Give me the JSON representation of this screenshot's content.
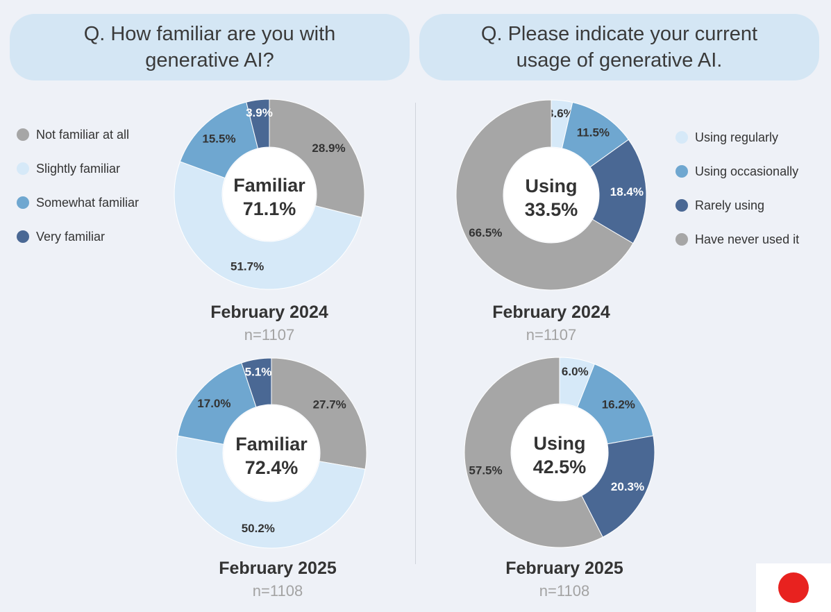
{
  "left_panel": {
    "question": "Q. How familiar are you with\ngenerative AI?",
    "legend": [
      {
        "label": "Not familiar at all",
        "color": "#a6a6a6"
      },
      {
        "label": "Slightly familiar",
        "color": "#d6e9f8"
      },
      {
        "label": "Somewhat familiar",
        "color": "#6fa7d0"
      },
      {
        "label": "Very familiar",
        "color": "#4a6894"
      }
    ]
  },
  "right_panel": {
    "question": "Q. Please indicate your current\nusage of generative AI.",
    "legend": [
      {
        "label": "Using regularly",
        "color": "#d6e9f8"
      },
      {
        "label": "Using occasionally",
        "color": "#6fa7d0"
      },
      {
        "label": "Rarely using",
        "color": "#4a6894"
      },
      {
        "label": "Have never used it",
        "color": "#a6a6a6"
      }
    ]
  },
  "chart_data": [
    {
      "type": "pie",
      "question": "Q. How familiar are you with generative AI?",
      "period": "February 2024",
      "n": "n=1107",
      "center_label": "Familiar",
      "center_value": "71.1%",
      "slices": [
        {
          "name": "Not familiar at all",
          "value": 28.9,
          "label": "28.9%",
          "color": "#a6a6a6"
        },
        {
          "name": "Slightly familiar",
          "value": 51.7,
          "label": "51.7%",
          "color": "#d6e9f8"
        },
        {
          "name": "Somewhat familiar",
          "value": 15.5,
          "label": "15.5%",
          "color": "#6fa7d0"
        },
        {
          "name": "Very familiar",
          "value": 3.9,
          "label": "3.9%",
          "color": "#4a6894"
        }
      ]
    },
    {
      "type": "pie",
      "question": "Q. How familiar are you with generative AI?",
      "period": "February 2025",
      "n": "n=1108",
      "center_label": "Familiar",
      "center_value": "72.4%",
      "slices": [
        {
          "name": "Not familiar at all",
          "value": 27.7,
          "label": "27.7%",
          "color": "#a6a6a6"
        },
        {
          "name": "Slightly familiar",
          "value": 50.2,
          "label": "50.2%",
          "color": "#d6e9f8"
        },
        {
          "name": "Somewhat familiar",
          "value": 17.0,
          "label": "17.0%",
          "color": "#6fa7d0"
        },
        {
          "name": "Very familiar",
          "value": 5.1,
          "label": "5.1%",
          "color": "#4a6894"
        }
      ]
    },
    {
      "type": "pie",
      "question": "Q. Please indicate your current usage of generative AI.",
      "period": "February 2024",
      "n": "n=1107",
      "center_label": "Using",
      "center_value": "33.5%",
      "slices": [
        {
          "name": "Using regularly",
          "value": 3.6,
          "label": "3.6%",
          "color": "#d6e9f8"
        },
        {
          "name": "Using occasionally",
          "value": 11.5,
          "label": "11.5%",
          "color": "#6fa7d0"
        },
        {
          "name": "Rarely using",
          "value": 18.4,
          "label": "18.4%",
          "color": "#4a6894"
        },
        {
          "name": "Have never used it",
          "value": 66.5,
          "label": "66.5%",
          "color": "#a6a6a6"
        }
      ]
    },
    {
      "type": "pie",
      "question": "Q. Please indicate your current usage of generative AI.",
      "period": "February 2025",
      "n": "n=1108",
      "center_label": "Using",
      "center_value": "42.5%",
      "slices": [
        {
          "name": "Using regularly",
          "value": 6.0,
          "label": "6.0%",
          "color": "#d6e9f8"
        },
        {
          "name": "Using occasionally",
          "value": 16.2,
          "label": "16.2%",
          "color": "#6fa7d0"
        },
        {
          "name": "Rarely using",
          "value": 20.3,
          "label": "20.3%",
          "color": "#4a6894"
        },
        {
          "name": "Have never used it",
          "value": 57.5,
          "label": "57.5%",
          "color": "#a6a6a6"
        }
      ]
    }
  ]
}
